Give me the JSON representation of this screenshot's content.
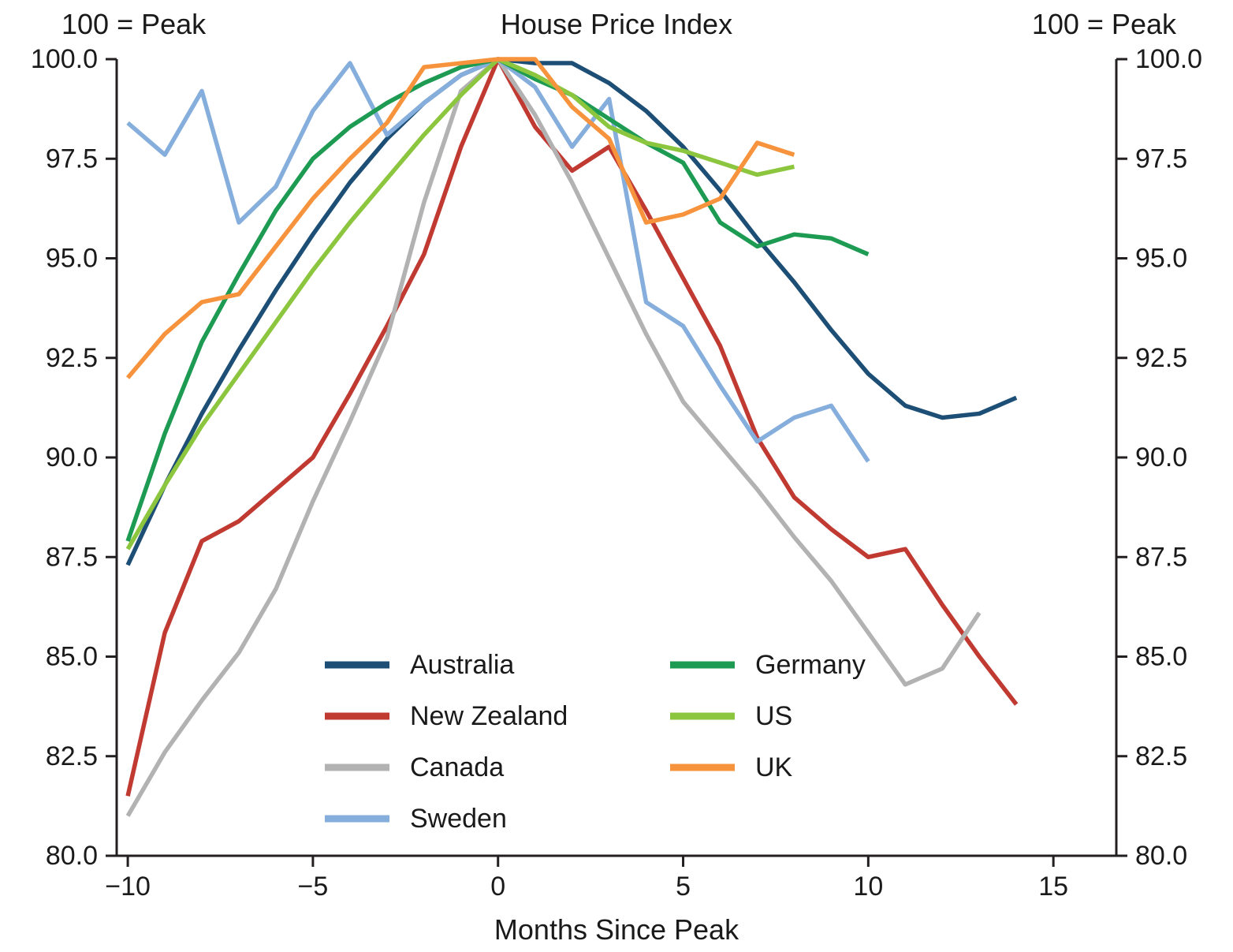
{
  "chart_data": {
    "type": "line",
    "title": "House Price Index",
    "left_unit_label": "100 = Peak",
    "right_unit_label": "100 = Peak",
    "xlabel": "Months Since Peak",
    "xlim": [
      -10.3,
      16.7
    ],
    "ylim": [
      80.0,
      100.0
    ],
    "grid": false,
    "xticks": {
      "values": [
        -10,
        -5,
        0,
        5,
        10,
        15
      ],
      "labels": [
        "−10",
        "−5",
        "0",
        "5",
        "10",
        "15"
      ]
    },
    "yticks": {
      "values": [
        100.0,
        97.5,
        95.0,
        92.5,
        90.0,
        87.5,
        85.0,
        82.5,
        80.0
      ],
      "labels": [
        "100.0",
        "97.5",
        "95.0",
        "92.5",
        "90.0",
        "87.5",
        "85.0",
        "82.5",
        "80.0"
      ]
    },
    "axis_color": "#231f20",
    "text_color": "#1a1a1a",
    "series": [
      {
        "name": "Australia",
        "color": "#1d4f76",
        "x": [
          -10,
          -9,
          -8,
          -7,
          -6,
          -5,
          -4,
          -3,
          -2,
          -1,
          0,
          1,
          2,
          3,
          4,
          5,
          6,
          7,
          8,
          9,
          10,
          11,
          12,
          13,
          14
        ],
        "values": [
          87.3,
          89.3,
          91.1,
          92.7,
          94.2,
          95.6,
          96.9,
          98.0,
          98.9,
          99.6,
          100.0,
          99.9,
          99.9,
          99.4,
          98.7,
          97.8,
          96.7,
          95.5,
          94.4,
          93.2,
          92.1,
          91.3,
          91.0,
          91.1,
          91.5
        ]
      },
      {
        "name": "New Zealand",
        "color": "#c03a32",
        "x": [
          -10,
          -9,
          -8,
          -7,
          -6,
          -5,
          -4,
          -3,
          -2,
          -1,
          0,
          1,
          2,
          3,
          4,
          5,
          6,
          7,
          8,
          9,
          10,
          11,
          12,
          13,
          14
        ],
        "values": [
          81.5,
          85.6,
          87.9,
          88.4,
          89.2,
          90.0,
          91.6,
          93.3,
          95.1,
          97.8,
          100.0,
          98.3,
          97.2,
          97.8,
          96.2,
          94.5,
          92.8,
          90.5,
          89.0,
          88.2,
          87.5,
          87.7,
          86.3,
          85.0,
          83.8
        ]
      },
      {
        "name": "Canada",
        "color": "#b2b2b2",
        "x": [
          -10,
          -9,
          -8,
          -7,
          -6,
          -5,
          -4,
          -3,
          -2,
          -1,
          0,
          1,
          2,
          3,
          4,
          5,
          6,
          7,
          8,
          9,
          10,
          11,
          12,
          13
        ],
        "values": [
          81.0,
          82.6,
          83.9,
          85.1,
          86.7,
          88.9,
          90.9,
          93.0,
          96.4,
          99.2,
          100.0,
          98.6,
          96.9,
          95.0,
          93.1,
          91.4,
          90.3,
          89.2,
          88.0,
          86.9,
          85.6,
          84.3,
          84.7,
          86.1
        ]
      },
      {
        "name": "Sweden",
        "color": "#85aedc",
        "x": [
          -10,
          -9,
          -8,
          -7,
          -6,
          -5,
          -4,
          -3,
          -2,
          -1,
          0,
          1,
          2,
          3,
          4,
          5,
          6,
          7,
          8,
          9,
          10
        ],
        "values": [
          98.4,
          97.6,
          99.2,
          95.9,
          96.8,
          98.7,
          99.9,
          98.1,
          98.9,
          99.6,
          100.0,
          99.3,
          97.8,
          99.0,
          93.9,
          93.3,
          91.8,
          90.4,
          91.0,
          91.3,
          89.9
        ]
      },
      {
        "name": "Germany",
        "color": "#1e9b52",
        "x": [
          -10,
          -9,
          -8,
          -7,
          -6,
          -5,
          -4,
          -3,
          -2,
          -1,
          0,
          1,
          2,
          3,
          4,
          5,
          6,
          7,
          8,
          9,
          10
        ],
        "values": [
          87.9,
          90.6,
          92.9,
          94.6,
          96.2,
          97.5,
          98.3,
          98.9,
          99.4,
          99.8,
          100.0,
          99.5,
          99.1,
          98.5,
          97.9,
          97.4,
          95.9,
          95.3,
          95.6,
          95.5,
          95.1
        ]
      },
      {
        "name": "US",
        "color": "#8cc63e",
        "x": [
          -10,
          -9,
          -8,
          -7,
          -6,
          -5,
          -4,
          -3,
          -2,
          -1,
          0,
          1,
          2,
          3,
          4,
          5,
          6,
          7,
          8
        ],
        "values": [
          87.7,
          89.3,
          90.8,
          92.1,
          93.4,
          94.7,
          95.9,
          97.0,
          98.1,
          99.1,
          100.0,
          99.6,
          99.1,
          98.3,
          97.9,
          97.7,
          97.4,
          97.1,
          97.3
        ]
      },
      {
        "name": "UK",
        "color": "#f6933c",
        "x": [
          -10,
          -9,
          -8,
          -7,
          -6,
          -5,
          -4,
          -3,
          -2,
          -1,
          0,
          1,
          2,
          3,
          4,
          5,
          6,
          7,
          8
        ],
        "values": [
          92.0,
          93.1,
          93.9,
          94.1,
          95.3,
          96.5,
          97.5,
          98.4,
          99.8,
          99.9,
          100.0,
          100.0,
          98.8,
          98.0,
          95.9,
          96.1,
          96.5,
          97.9,
          97.6
        ]
      }
    ],
    "legend": {
      "position": "inside-bottom-center",
      "columns": [
        [
          "Australia",
          "New Zealand",
          "Canada",
          "Sweden"
        ],
        [
          "Germany",
          "US",
          "UK"
        ]
      ]
    }
  }
}
